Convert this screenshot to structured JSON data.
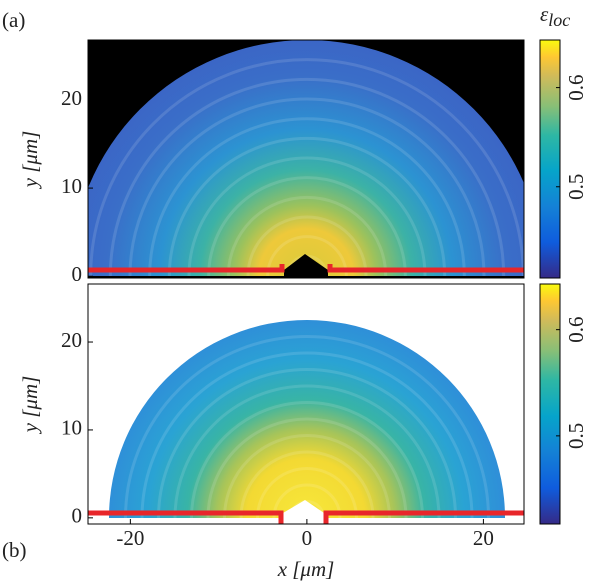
{
  "chart_data": [
    {
      "type": "heatmap",
      "panel_label": "(a)",
      "ylabel": "y [μm]",
      "xlim": [
        -24.8,
        24.6
      ],
      "ylim": [
        -0.2,
        26.8
      ],
      "yticks": [
        0,
        10,
        20
      ],
      "background": "#000000",
      "clim": [
        0.408,
        0.648
      ],
      "cticks": [
        0.5,
        0.6
      ],
      "cbar_label": "ε",
      "cbar_label_sub": "loc"
    },
    {
      "type": "heatmap",
      "panel_label": "(b)",
      "xlabel": "x [μm]",
      "ylabel": "y [μm]",
      "xlim": [
        -24.8,
        24.6
      ],
      "ylim": [
        -0.7,
        26.6
      ],
      "xticks": [
        -20,
        0,
        20
      ],
      "yticks": [
        0,
        10,
        20
      ],
      "background": "#ffffff",
      "clim": [
        0.417,
        0.643
      ],
      "cticks": [
        0.5,
        0.6
      ]
    }
  ]
}
